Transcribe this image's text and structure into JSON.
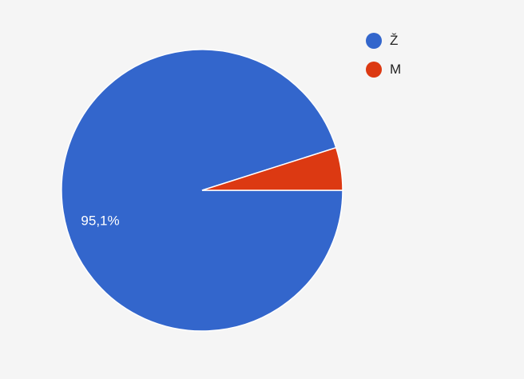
{
  "chart_data": {
    "type": "pie",
    "title": "",
    "legend_position": "top-right",
    "slices": [
      {
        "label": "Ž",
        "value": 95.1,
        "value_label": "95,1%",
        "color": "#3366cc"
      },
      {
        "label": "M",
        "value": 4.9,
        "value_label": "",
        "color": "#dc3912"
      }
    ]
  }
}
